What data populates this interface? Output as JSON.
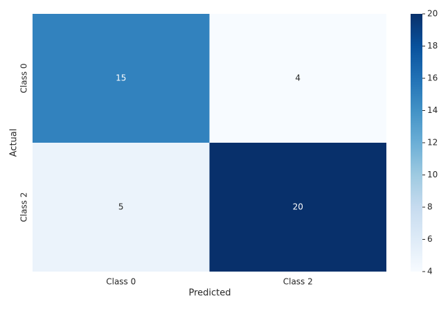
{
  "chart_data": {
    "type": "heatmap",
    "x_label": "Predicted",
    "y_label": "Actual",
    "x_categories": [
      "Class 0",
      "Class 2"
    ],
    "y_categories": [
      "Class 0",
      "Class 2"
    ],
    "z": [
      [
        15,
        4
      ],
      [
        5,
        20
      ]
    ],
    "colormap": "Blues",
    "zlim": [
      4,
      20
    ],
    "zticks": [
      4,
      6,
      8,
      10,
      12,
      14,
      16,
      18,
      20
    ]
  }
}
